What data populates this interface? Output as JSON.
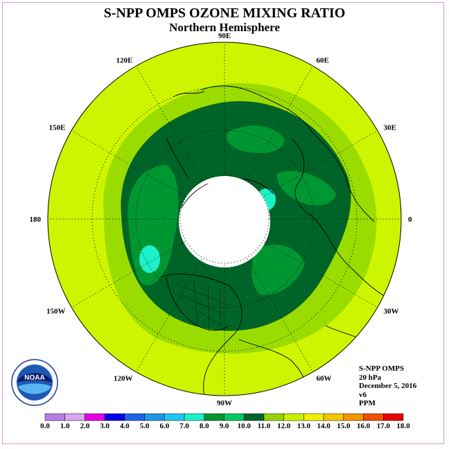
{
  "title": "S-NPP OMPS OZONE MIXING RATIO",
  "subtitle": "Northern Hemisphere",
  "longitude_labels": [
    "90E",
    "60E",
    "30E",
    "0",
    "30W",
    "60W",
    "90W",
    "120W",
    "150W",
    "180",
    "150E",
    "120E"
  ],
  "info": {
    "instrument": "S-NPP OMPS",
    "level": "20 hPa",
    "date": "December 5, 2016",
    "version": "v6",
    "units": "PPM"
  },
  "colorbar": {
    "ticks": [
      "0.0",
      "1.0",
      "2.0",
      "3.0",
      "4.0",
      "5.0",
      "6.0",
      "7.0",
      "8.0",
      "9.0",
      "10.0",
      "11.0",
      "12.0",
      "13.0",
      "14.0",
      "15.0",
      "16.0",
      "17.0",
      "18.0"
    ],
    "colors": [
      "#b87ee6",
      "#d9a8ee",
      "#e600e6",
      "#0000e6",
      "#1e64e6",
      "#1e96e6",
      "#1ec8f0",
      "#1ef0c8",
      "#009632",
      "#00c864",
      "#006428",
      "#96d200",
      "#c8f000",
      "#f0f000",
      "#f0c800",
      "#f09600",
      "#f05000",
      "#e60000",
      "#8c5a3c"
    ]
  },
  "legend_colors": {
    "background": "#cdf500",
    "band_11": "#9bdc00",
    "band_10": "#006428",
    "band_9": "#009632",
    "band_8": "#1ef0c8",
    "no_data": "#ffffff"
  },
  "logo": {
    "text": "NOAA"
  }
}
